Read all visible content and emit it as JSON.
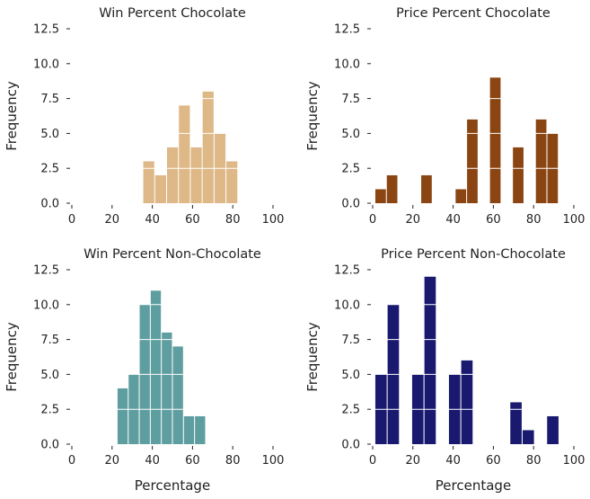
{
  "chart_data": [
    {
      "type": "bar",
      "title": "Win Percent Chocolate",
      "xlabel": "",
      "ylabel": "Frequency",
      "color": "#DEB887",
      "xlim": [
        0,
        100
      ],
      "ylim": [
        0,
        12.5
      ],
      "xticks": [
        0,
        20,
        40,
        60,
        80,
        100
      ],
      "yticks": [
        "0.0",
        "2.5",
        "5.0",
        "7.5",
        "10.0",
        "12.5"
      ],
      "bins": [
        {
          "x0": 35.3,
          "x1": 41.2,
          "count": 3
        },
        {
          "x0": 41.2,
          "x1": 47.1,
          "count": 2
        },
        {
          "x0": 47.1,
          "x1": 53.0,
          "count": 4
        },
        {
          "x0": 53.0,
          "x1": 58.9,
          "count": 7
        },
        {
          "x0": 58.9,
          "x1": 64.8,
          "count": 4
        },
        {
          "x0": 64.8,
          "x1": 70.7,
          "count": 8
        },
        {
          "x0": 70.7,
          "x1": 76.6,
          "count": 5
        },
        {
          "x0": 76.6,
          "x1": 82.5,
          "count": 3
        }
      ]
    },
    {
      "type": "bar",
      "title": "Price Percent Chocolate",
      "xlabel": "",
      "ylabel": "Frequency",
      "color": "#8B4513",
      "xlim": [
        0,
        100
      ],
      "ylim": [
        0,
        12.5
      ],
      "xticks": [
        0,
        20,
        40,
        60,
        80,
        100
      ],
      "yticks": [
        "0.0",
        "2.5",
        "5.0",
        "7.5",
        "10.0",
        "12.5"
      ],
      "bins": [
        {
          "x0": 1.1,
          "x1": 6.8,
          "count": 1
        },
        {
          "x0": 6.8,
          "x1": 12.5,
          "count": 2
        },
        {
          "x0": 12.5,
          "x1": 18.2,
          "count": 0
        },
        {
          "x0": 18.2,
          "x1": 23.9,
          "count": 0
        },
        {
          "x0": 23.9,
          "x1": 29.6,
          "count": 2
        },
        {
          "x0": 29.6,
          "x1": 35.3,
          "count": 0
        },
        {
          "x0": 35.3,
          "x1": 41.0,
          "count": 0
        },
        {
          "x0": 41.0,
          "x1": 46.7,
          "count": 1
        },
        {
          "x0": 46.7,
          "x1": 52.4,
          "count": 6
        },
        {
          "x0": 52.4,
          "x1": 58.1,
          "count": 0
        },
        {
          "x0": 58.1,
          "x1": 63.8,
          "count": 9
        },
        {
          "x0": 63.8,
          "x1": 69.5,
          "count": 0
        },
        {
          "x0": 69.5,
          "x1": 75.2,
          "count": 4
        },
        {
          "x0": 75.2,
          "x1": 80.9,
          "count": 0
        },
        {
          "x0": 80.9,
          "x1": 86.6,
          "count": 6
        },
        {
          "x0": 86.6,
          "x1": 92.3,
          "count": 5
        }
      ]
    },
    {
      "type": "bar",
      "title": "Win Percent Non-Chocolate",
      "xlabel": "Percentage",
      "ylabel": "Frequency",
      "color": "#5F9EA0",
      "xlim": [
        0,
        100
      ],
      "ylim": [
        0,
        12.5
      ],
      "xticks": [
        0,
        20,
        40,
        60,
        80,
        100
      ],
      "yticks": [
        "0.0",
        "2.5",
        "5.0",
        "7.5",
        "10.0",
        "12.5"
      ],
      "bins": [
        {
          "x0": 22.5,
          "x1": 28.0,
          "count": 4
        },
        {
          "x0": 28.0,
          "x1": 33.5,
          "count": 5
        },
        {
          "x0": 33.5,
          "x1": 39.0,
          "count": 10
        },
        {
          "x0": 39.0,
          "x1": 44.5,
          "count": 11
        },
        {
          "x0": 44.5,
          "x1": 50.0,
          "count": 8
        },
        {
          "x0": 50.0,
          "x1": 55.5,
          "count": 7
        },
        {
          "x0": 55.5,
          "x1": 61.0,
          "count": 2
        },
        {
          "x0": 61.0,
          "x1": 66.5,
          "count": 2
        }
      ]
    },
    {
      "type": "bar",
      "title": "Price Percent Non-Chocolate",
      "xlabel": "Percentage",
      "ylabel": "Frequency",
      "color": "#191970",
      "xlim": [
        0,
        100
      ],
      "ylim": [
        0,
        12.5
      ],
      "xticks": [
        0,
        20,
        40,
        60,
        80,
        100
      ],
      "yticks": [
        "0.0",
        "2.5",
        "5.0",
        "7.5",
        "10.0",
        "12.5"
      ],
      "bins": [
        {
          "x0": 1.1,
          "x1": 7.2,
          "count": 5
        },
        {
          "x0": 7.2,
          "x1": 13.3,
          "count": 10
        },
        {
          "x0": 13.3,
          "x1": 19.4,
          "count": 0
        },
        {
          "x0": 19.4,
          "x1": 25.5,
          "count": 5
        },
        {
          "x0": 25.5,
          "x1": 31.6,
          "count": 12
        },
        {
          "x0": 31.6,
          "x1": 37.7,
          "count": 0
        },
        {
          "x0": 37.7,
          "x1": 43.8,
          "count": 5
        },
        {
          "x0": 43.8,
          "x1": 49.9,
          "count": 6
        },
        {
          "x0": 49.9,
          "x1": 56.0,
          "count": 0
        },
        {
          "x0": 56.0,
          "x1": 62.1,
          "count": 0
        },
        {
          "x0": 62.1,
          "x1": 68.2,
          "count": 0
        },
        {
          "x0": 68.2,
          "x1": 74.3,
          "count": 3
        },
        {
          "x0": 74.3,
          "x1": 80.4,
          "count": 1
        },
        {
          "x0": 80.4,
          "x1": 86.5,
          "count": 0
        },
        {
          "x0": 86.5,
          "x1": 92.6,
          "count": 2
        }
      ]
    }
  ]
}
